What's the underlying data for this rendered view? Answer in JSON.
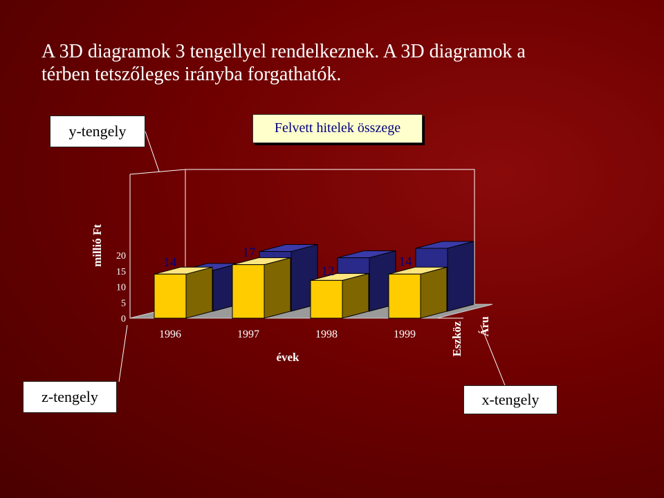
{
  "heading": {
    "line1": "A 3D diagramok 3 tengellyel rendelkeznek. A 3D diagramok a",
    "line2": "térben tetszőleges irányba forgathatók."
  },
  "callouts": {
    "y_axis": "y-tengely",
    "z_axis": "z-tengely",
    "x_axis": "x-tengely"
  },
  "colors": {
    "background": "#6e0000",
    "front_series": "#ffcc00",
    "back_series": "#2a2a8a",
    "data_label": "#000080"
  },
  "chart_data": {
    "type": "bar",
    "title": "Felvett hitelek összege",
    "xlabel": "évek",
    "ylabel": "millió Ft",
    "ylim": [
      0,
      20
    ],
    "yticks": [
      0,
      5,
      10,
      15,
      20
    ],
    "categories": [
      "1996",
      "1997",
      "1998",
      "1999"
    ],
    "series": [
      {
        "name": "Eszköz",
        "values": [
          14,
          17,
          12,
          14
        ]
      },
      {
        "name": "Áru",
        "values": [
          13,
          19,
          17,
          20
        ]
      }
    ],
    "data_labels": [
      "14",
      "17",
      "12",
      "14"
    ],
    "grid": false
  }
}
